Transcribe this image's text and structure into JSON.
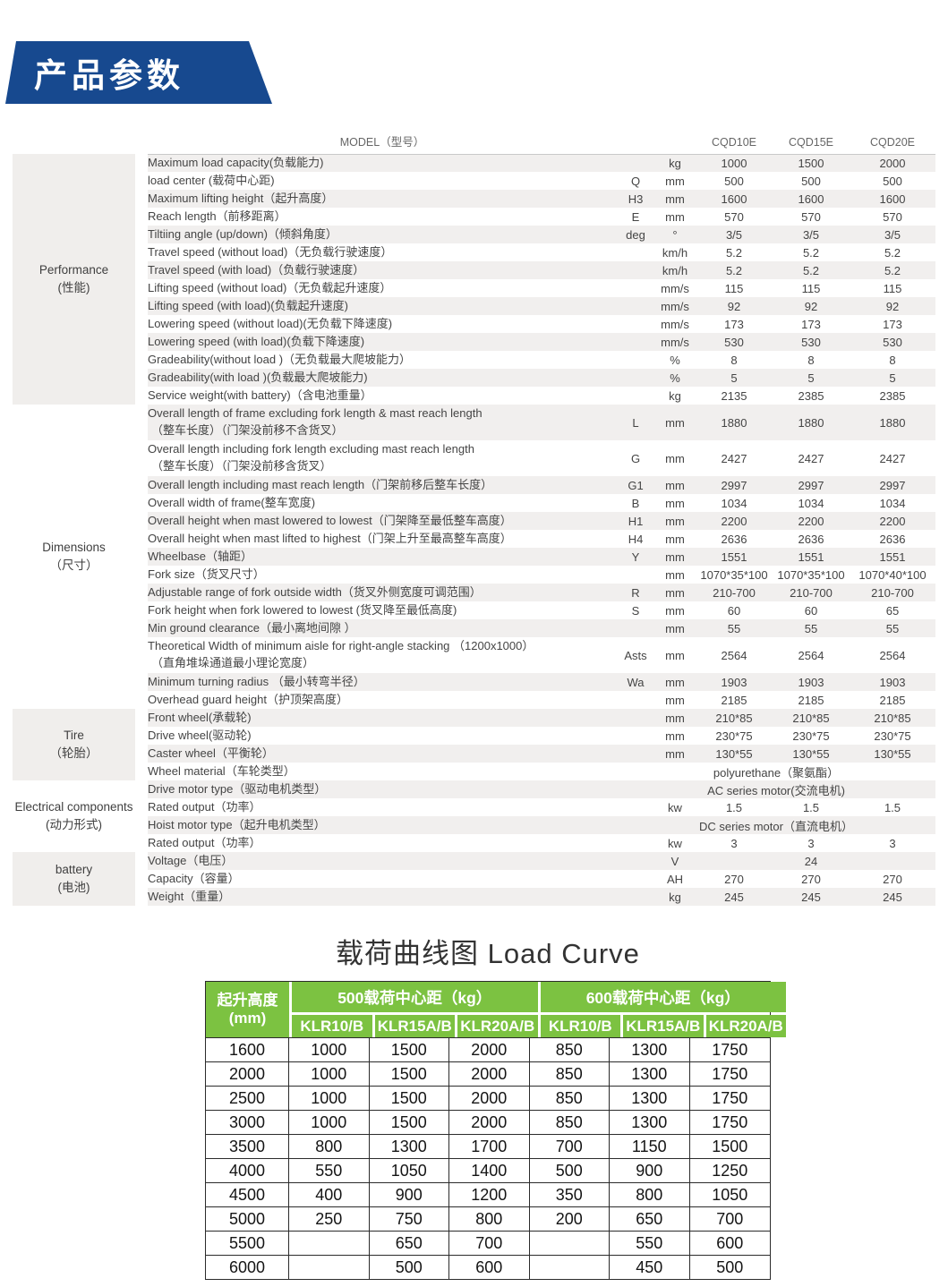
{
  "banner": {
    "title": "产品参数"
  },
  "colors": {
    "banner_blue": "#17498f",
    "header_green": "#7cc241",
    "row_shading": "#f1efee",
    "section_box": "#f0eeec",
    "table_border": "#2b2b2b"
  },
  "spec_table": {
    "model_label": "MODEL（型号）",
    "models": [
      "CQD10E",
      "CQD15E",
      "CQD20E"
    ],
    "sections": [
      {
        "name": "Performance",
        "name_cn": "(性能)",
        "shaded": true,
        "rows": [
          {
            "label": "Maximum load capacity(负载能力)",
            "unit": "kg",
            "values": [
              "1000",
              "1500",
              "2000"
            ]
          },
          {
            "label": "load center (载荷中心距)",
            "sym": "Q",
            "unit": "mm",
            "values": [
              "500",
              "500",
              "500"
            ]
          },
          {
            "label": "Maximum lifting height（起升高度）",
            "sym": "H3",
            "unit": "mm",
            "values": [
              "1600",
              "1600",
              "1600"
            ]
          },
          {
            "label": "Reach length（前移距离）",
            "sym": "E",
            "unit": "mm",
            "values": [
              "570",
              "570",
              "570"
            ]
          },
          {
            "label": "Tiltiing angle (up/down)（倾斜角度）",
            "sym": "deg",
            "unit": "°",
            "values": [
              "3/5",
              "3/5",
              "3/5"
            ]
          },
          {
            "label": "Travel speed (without load)（无负载行驶速度）",
            "unit": "km/h",
            "values": [
              "5.2",
              "5.2",
              "5.2"
            ]
          },
          {
            "label": "Travel speed (with load)（负载行驶速度）",
            "unit": "km/h",
            "values": [
              "5.2",
              "5.2",
              "5.2"
            ]
          },
          {
            "label": "Lifting speed (without load)（无负载起升速度）",
            "unit": "mm/s",
            "values": [
              "115",
              "115",
              "115"
            ]
          },
          {
            "label": "Lifting speed (with load)(负载起升速度)",
            "unit": "mm/s",
            "values": [
              "92",
              "92",
              "92"
            ]
          },
          {
            "label": "Lowering speed (without load)(无负载下降速度)",
            "unit": "mm/s",
            "values": [
              "173",
              "173",
              "173"
            ]
          },
          {
            "label": "Lowering speed (with load)(负载下降速度)",
            "unit": "mm/s",
            "values": [
              "530",
              "530",
              "530"
            ]
          },
          {
            "label": "Gradeability(without load )（无负载最大爬坡能力）",
            "unit": "%",
            "values": [
              "8",
              "8",
              "8"
            ]
          },
          {
            "label": "Gradeability(with load )(负载最大爬坡能力)",
            "unit": "%",
            "values": [
              "5",
              "5",
              "5"
            ]
          },
          {
            "label": "Service weight(with battery)（含电池重量）",
            "unit": "kg",
            "values": [
              "2135",
              "2385",
              "2385"
            ]
          }
        ]
      },
      {
        "name": "Dimensions",
        "name_cn": "（尺寸）",
        "shaded": false,
        "rows": [
          {
            "label": "Overall length of frame excluding fork length & mast reach length",
            "label2": "（整车长度）（门架没前移不含货叉）",
            "sym": "L",
            "unit": "mm",
            "values": [
              "1880",
              "1880",
              "1880"
            ]
          },
          {
            "label": "Overall length including fork length excluding mast reach length",
            "label2": "（整车长度）（门架没前移含货叉）",
            "sym": "G",
            "unit": "mm",
            "values": [
              "2427",
              "2427",
              "2427"
            ]
          },
          {
            "label": "Overall length including mast reach length（门架前移后整车长度）",
            "sym": "G1",
            "unit": "mm",
            "values": [
              "2997",
              "2997",
              "2997"
            ]
          },
          {
            "label": "Overall width of frame(整车宽度)",
            "sym": "B",
            "unit": "mm",
            "values": [
              "1034",
              "1034",
              "1034"
            ]
          },
          {
            "label": "Overall height when mast lowered to lowest（门架降至最低整车高度）",
            "sym": "H1",
            "unit": "mm",
            "values": [
              "2200",
              "2200",
              "2200"
            ]
          },
          {
            "label": "Overall height when mast lifted to highest（门架上升至最高整车高度）",
            "sym": "H4",
            "unit": "mm",
            "values": [
              "2636",
              "2636",
              "2636"
            ]
          },
          {
            "label": "Wheelbase（轴距）",
            "sym": "Y",
            "unit": "mm",
            "values": [
              "1551",
              "1551",
              "1551"
            ]
          },
          {
            "label": "Fork size（货叉尺寸）",
            "unit": "mm",
            "values": [
              "1070*35*100",
              "1070*35*100",
              "1070*40*100"
            ]
          },
          {
            "label": "Adjustable range of fork outside width（货叉外侧宽度可调范围）",
            "sym": "R",
            "unit": "mm",
            "values": [
              "210-700",
              "210-700",
              "210-700"
            ]
          },
          {
            "label": "Fork height when fork lowered to lowest (货叉降至最低高度)",
            "sym": "S",
            "unit": "mm",
            "values": [
              "60",
              "60",
              "65"
            ]
          },
          {
            "label": "Min ground clearance（最小离地间隙 ）",
            "unit": "mm",
            "values": [
              "55",
              "55",
              "55"
            ]
          },
          {
            "label": "Theoretical Width of minimum  aisle for right-angle  stacking （1200x1000）",
            "label2": "（直角堆垛通道最小理论宽度）",
            "sym": "Asts",
            "unit": "mm",
            "values": [
              "2564",
              "2564",
              "2564"
            ]
          },
          {
            "label": "Minimum turning radius （最小转弯半径）",
            "sym": "Wa",
            "unit": "mm",
            "values": [
              "1903",
              "1903",
              "1903"
            ]
          },
          {
            "label": "Overhead guard height（护顶架高度）",
            "unit": "mm",
            "values": [
              "2185",
              "2185",
              "2185"
            ]
          }
        ]
      },
      {
        "name": "Tire",
        "name_cn": "（轮胎）",
        "shaded": true,
        "rows": [
          {
            "label": "Front wheel(承载轮)",
            "unit": "mm",
            "values": [
              "210*85",
              "210*85",
              "210*85"
            ]
          },
          {
            "label": "Drive wheel(驱动轮)",
            "unit": "mm",
            "values": [
              "230*75",
              "230*75",
              "230*75"
            ]
          },
          {
            "label": "Caster wheel（平衡轮）",
            "unit": "mm",
            "values": [
              "130*55",
              "130*55",
              "130*55"
            ]
          },
          {
            "label": "Wheel material（车轮类型）",
            "span_value": "polyurethane（聚氨酯）"
          }
        ]
      },
      {
        "name": "Electrical components",
        "name_cn": "(动力形式)",
        "shaded": false,
        "rows": [
          {
            "label": "Drive motor type（驱动电机类型）",
            "span_value": "AC series motor(交流电机)"
          },
          {
            "label": "Rated output（功率）",
            "unit": "kw",
            "values": [
              "1.5",
              "1.5",
              "1.5"
            ]
          },
          {
            "label": "Hoist motor type（起升电机类型）",
            "span_value": "DC series motor（直流电机）"
          },
          {
            "label": "Rated output（功率）",
            "unit": "kw",
            "values": [
              "3",
              "3",
              "3"
            ]
          }
        ]
      },
      {
        "name": "battery",
        "name_cn": "(电池)",
        "shaded": true,
        "rows": [
          {
            "label": "Voltage（电压）",
            "unit": "V",
            "values": [
              "",
              "24",
              ""
            ]
          },
          {
            "label": "Capacity（容量）",
            "unit": "AH",
            "values": [
              "270",
              "270",
              "270"
            ]
          },
          {
            "label": "Weight（重量）",
            "unit": "kg",
            "values": [
              "245",
              "245",
              "245"
            ]
          }
        ]
      }
    ]
  },
  "load_curve": {
    "title": "载荷曲线图 Load Curve",
    "height_header_line1": "起升高度",
    "height_header_line2": "(mm)",
    "groups": [
      {
        "label": "500载荷中心距（kg）",
        "cols": [
          "KLR10/B",
          "KLR15A/B",
          "KLR20A/B"
        ]
      },
      {
        "label": "600载荷中心距（kg）",
        "cols": [
          "KLR10/B",
          "KLR15A/B",
          "KLR20A/B"
        ]
      }
    ],
    "rows": [
      {
        "height": "1600",
        "values": [
          "1000",
          "1500",
          "2000",
          "850",
          "1300",
          "1750"
        ]
      },
      {
        "height": "2000",
        "values": [
          "1000",
          "1500",
          "2000",
          "850",
          "1300",
          "1750"
        ]
      },
      {
        "height": "2500",
        "values": [
          "1000",
          "1500",
          "2000",
          "850",
          "1300",
          "1750"
        ]
      },
      {
        "height": "3000",
        "values": [
          "1000",
          "1500",
          "2000",
          "850",
          "1300",
          "1750"
        ]
      },
      {
        "height": "3500",
        "values": [
          "800",
          "1300",
          "1700",
          "700",
          "1150",
          "1500"
        ]
      },
      {
        "height": "4000",
        "values": [
          "550",
          "1050",
          "1400",
          "500",
          "900",
          "1250"
        ]
      },
      {
        "height": "4500",
        "values": [
          "400",
          "900",
          "1200",
          "350",
          "800",
          "1050"
        ]
      },
      {
        "height": "5000",
        "values": [
          "250",
          "750",
          "800",
          "200",
          "650",
          "700"
        ]
      },
      {
        "height": "5500",
        "values": [
          "",
          "650",
          "700",
          "",
          "550",
          "600"
        ]
      },
      {
        "height": "6000",
        "values": [
          "",
          "500",
          "600",
          "",
          "450",
          "500"
        ]
      }
    ]
  }
}
